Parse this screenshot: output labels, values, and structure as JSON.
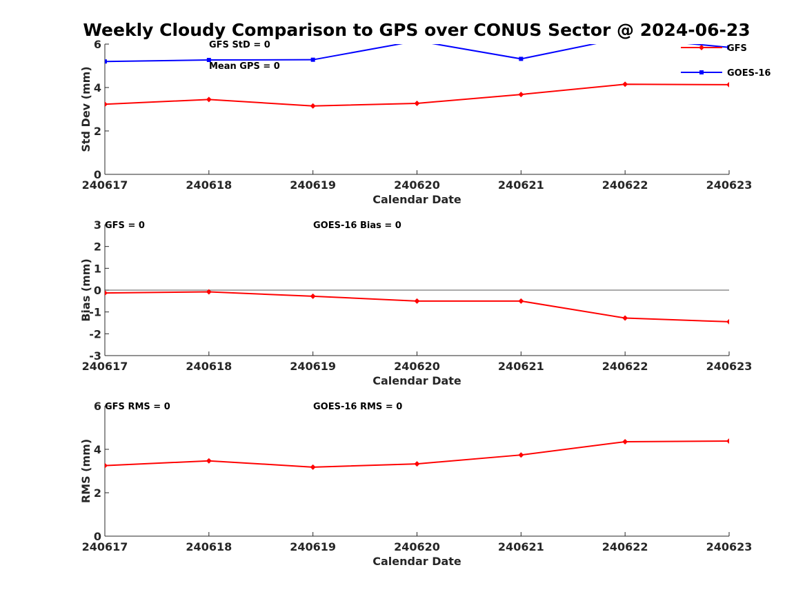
{
  "figure": {
    "title": "Weekly Cloudy Comparison to GPS over CONUS Sector @ 2024-06-23"
  },
  "legend": {
    "position": "top-right of first panel",
    "entries": [
      {
        "label": "GFS",
        "color": "#ff0000",
        "marker": "diamond"
      },
      {
        "label": "GOES-16",
        "color": "#0000ff",
        "marker": "square"
      }
    ]
  },
  "chart_data": [
    {
      "type": "line",
      "x": [
        "240617",
        "240618",
        "240619",
        "240620",
        "240621",
        "240622",
        "240623"
      ],
      "xlabel": "Calendar Date",
      "ylabel": "Std Dev (mm)",
      "ylim": [
        0,
        6
      ],
      "yticks": [
        0,
        2,
        4,
        6
      ],
      "zero_line": false,
      "grid": false,
      "series": [
        {
          "name": "GFS",
          "color": "#ff0000",
          "marker": "diamond",
          "values": [
            3.23,
            3.45,
            3.15,
            3.27,
            3.68,
            4.15,
            4.13
          ]
        },
        {
          "name": "GOES-16",
          "color": "#0000ff",
          "marker": "square",
          "values": [
            5.2,
            5.27,
            5.28,
            6.15,
            5.32,
            6.3,
            5.85
          ]
        }
      ],
      "annotations": [
        "GFS StD = 0",
        "Mean GPS = 0"
      ]
    },
    {
      "type": "line",
      "x": [
        "240617",
        "240618",
        "240619",
        "240620",
        "240621",
        "240622",
        "240623"
      ],
      "xlabel": "Calendar Date",
      "ylabel": "Bias (mm)",
      "ylim": [
        -3,
        3
      ],
      "yticks": [
        -3,
        -2,
        -1,
        0,
        1,
        2,
        3
      ],
      "zero_line": true,
      "grid": false,
      "series": [
        {
          "name": "GFS",
          "color": "#ff0000",
          "marker": "diamond",
          "values": [
            -0.13,
            -0.08,
            -0.28,
            -0.5,
            -0.5,
            -1.28,
            -1.45
          ]
        }
      ],
      "annotations": [
        "GFS = 0",
        "GOES-16 Bias  = 0"
      ]
    },
    {
      "type": "line",
      "x": [
        "240617",
        "240618",
        "240619",
        "240620",
        "240621",
        "240622",
        "240623"
      ],
      "xlabel": "Calendar Date",
      "ylabel": "RMS (mm)",
      "ylim": [
        0,
        6
      ],
      "yticks": [
        0,
        2,
        4,
        6
      ],
      "zero_line": false,
      "grid": false,
      "series": [
        {
          "name": "GFS",
          "color": "#ff0000",
          "marker": "diamond",
          "values": [
            3.25,
            3.47,
            3.18,
            3.33,
            3.74,
            4.35,
            4.38
          ]
        }
      ],
      "annotations": [
        "GFS RMS = 0",
        "GOES-16 RMS = 0"
      ]
    }
  ]
}
